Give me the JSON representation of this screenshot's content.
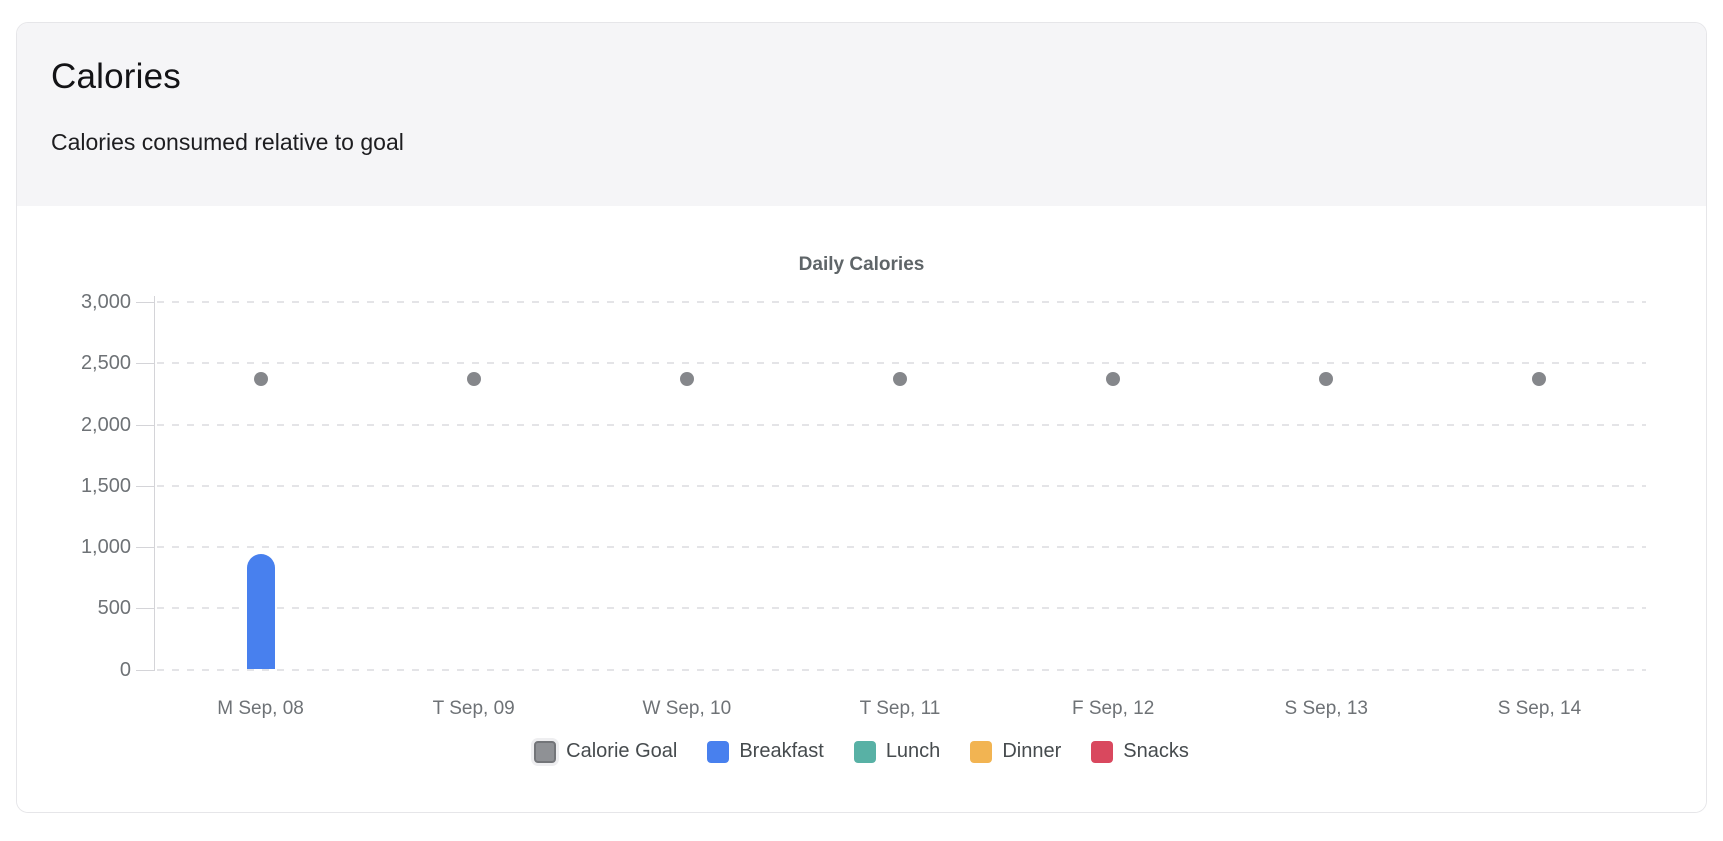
{
  "card": {
    "title": "Calories",
    "subtitle": "Calories consumed relative to goal"
  },
  "chart_data": {
    "type": "mixed",
    "title": "Daily Calories",
    "categories": [
      "M Sep, 08",
      "T Sep, 09",
      "W Sep, 10",
      "T Sep, 11",
      "F Sep, 12",
      "S Sep, 13",
      "S Sep, 14"
    ],
    "series": [
      {
        "name": "Calorie Goal",
        "type": "scatter",
        "color": "#85878B",
        "values": [
          2370,
          2370,
          2370,
          2370,
          2370,
          2370,
          2370
        ]
      },
      {
        "name": "Breakfast",
        "type": "bar",
        "color": "#4880EE",
        "values": [
          945,
          0,
          0,
          0,
          0,
          0,
          0
        ]
      },
      {
        "name": "Lunch",
        "type": "bar",
        "color": "#58B1A5",
        "values": [
          0,
          0,
          0,
          0,
          0,
          0,
          0
        ]
      },
      {
        "name": "Dinner",
        "type": "bar",
        "color": "#F2B452",
        "values": [
          0,
          0,
          0,
          0,
          0,
          0,
          0
        ]
      },
      {
        "name": "Snacks",
        "type": "bar",
        "color": "#D9485E",
        "values": [
          0,
          0,
          0,
          0,
          0,
          0,
          0
        ]
      }
    ],
    "ylabel": "",
    "xlabel": "",
    "ylim": [
      0,
      3000
    ],
    "ytick_step": 500,
    "ytick_labels": [
      "0",
      "500",
      "1,000",
      "1,500",
      "2,000",
      "2,500",
      "3,000"
    ],
    "grid": "horizontal-dashed",
    "legend_position": "bottom",
    "legend_marker_goal_fill": "#8F9195",
    "legend_marker_goal_border": "#737579"
  }
}
